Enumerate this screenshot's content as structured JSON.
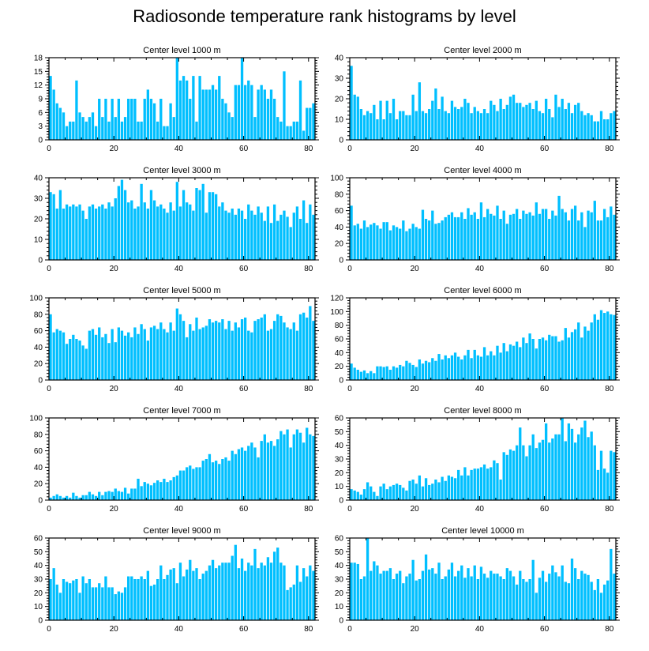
{
  "title": "Radiosonde temperature rank histograms by level",
  "bar_color": "#00bfff",
  "chart_data": [
    {
      "type": "bar",
      "title": "Center level 1000 m",
      "xlim": [
        0,
        82
      ],
      "ylim": [
        0,
        18
      ],
      "xticks": [
        0,
        20,
        40,
        60,
        80
      ],
      "yticks": [
        0,
        3,
        6,
        9,
        12,
        15,
        18
      ],
      "values": [
        14,
        11,
        8,
        7,
        6,
        3,
        4,
        4,
        13,
        6,
        5,
        4,
        5,
        6,
        3,
        9,
        5,
        9,
        4,
        9,
        5,
        9,
        4,
        5,
        9,
        9,
        9,
        4,
        4,
        9,
        11,
        9,
        8,
        4,
        9,
        3,
        3,
        8,
        5,
        18,
        13,
        14,
        13,
        9,
        14,
        4,
        14,
        11,
        11,
        11,
        12,
        11,
        14,
        9,
        8,
        6,
        5,
        12,
        12,
        18,
        12,
        13,
        12,
        5,
        11,
        12,
        11,
        9,
        11,
        9,
        5,
        4,
        15,
        3,
        3,
        4,
        4,
        13,
        2,
        7,
        7,
        8
      ]
    },
    {
      "type": "bar",
      "title": "Center level 2000 m",
      "xlim": [
        0,
        82
      ],
      "ylim": [
        0,
        40
      ],
      "xticks": [
        0,
        20,
        40,
        60,
        80
      ],
      "yticks": [
        0,
        10,
        20,
        30,
        40
      ],
      "values": [
        36,
        22,
        21,
        15,
        12,
        14,
        13,
        17,
        10,
        19,
        10,
        19,
        13,
        20,
        10,
        14,
        14,
        12,
        12,
        22,
        14,
        28,
        14,
        13,
        15,
        19,
        25,
        15,
        21,
        14,
        13,
        19,
        16,
        15,
        16,
        20,
        18,
        13,
        16,
        14,
        13,
        15,
        13,
        19,
        17,
        14,
        20,
        15,
        17,
        21,
        22,
        18,
        18,
        16,
        17,
        18,
        15,
        19,
        14,
        13,
        20,
        15,
        11,
        22,
        16,
        20,
        15,
        18,
        13,
        17,
        18,
        14,
        12,
        13,
        12,
        9,
        9,
        14,
        10,
        10,
        13,
        14
      ]
    },
    {
      "type": "bar",
      "title": "Center level 3000 m",
      "xlim": [
        0,
        82
      ],
      "ylim": [
        0,
        40
      ],
      "xticks": [
        0,
        20,
        40,
        60,
        80
      ],
      "yticks": [
        0,
        10,
        20,
        30,
        40
      ],
      "values": [
        33,
        32,
        25,
        34,
        25,
        27,
        26,
        27,
        26,
        27,
        24,
        20,
        26,
        27,
        25,
        26,
        27,
        25,
        28,
        26,
        30,
        36,
        39,
        34,
        28,
        29,
        25,
        26,
        37,
        28,
        25,
        34,
        29,
        26,
        27,
        25,
        23,
        28,
        24,
        38,
        26,
        34,
        28,
        27,
        24,
        35,
        34,
        37,
        23,
        33,
        33,
        32,
        26,
        28,
        24,
        23,
        25,
        22,
        25,
        24,
        20,
        27,
        24,
        22,
        26,
        23,
        19,
        26,
        18,
        27,
        19,
        22,
        24,
        21,
        16,
        23,
        26,
        20,
        29,
        18,
        27,
        22
      ]
    },
    {
      "type": "bar",
      "title": "Center level 4000 m",
      "xlim": [
        0,
        82
      ],
      "ylim": [
        0,
        100
      ],
      "xticks": [
        0,
        20,
        40,
        60,
        80
      ],
      "yticks": [
        0,
        20,
        40,
        60,
        80,
        100
      ],
      "values": [
        66,
        42,
        44,
        38,
        48,
        40,
        43,
        45,
        42,
        38,
        46,
        46,
        36,
        42,
        40,
        38,
        48,
        35,
        38,
        44,
        40,
        38,
        61,
        50,
        48,
        60,
        44,
        45,
        48,
        52,
        55,
        58,
        52,
        52,
        58,
        50,
        63,
        55,
        58,
        50,
        70,
        52,
        62,
        56,
        54,
        66,
        50,
        60,
        44,
        55,
        56,
        62,
        50,
        60,
        56,
        58,
        54,
        70,
        56,
        62,
        62,
        50,
        60,
        54,
        78,
        62,
        58,
        48,
        62,
        66,
        48,
        58,
        40,
        60,
        58,
        72,
        48,
        48,
        62,
        52,
        65,
        55
      ]
    },
    {
      "type": "bar",
      "title": "Center level 5000 m",
      "xlim": [
        0,
        82
      ],
      "ylim": [
        0,
        100
      ],
      "xticks": [
        0,
        20,
        40,
        60,
        80
      ],
      "yticks": [
        0,
        20,
        40,
        60,
        80,
        100
      ],
      "values": [
        80,
        58,
        62,
        60,
        58,
        44,
        50,
        55,
        50,
        48,
        42,
        38,
        60,
        62,
        55,
        64,
        52,
        56,
        45,
        62,
        46,
        64,
        60,
        54,
        58,
        52,
        64,
        56,
        68,
        62,
        48,
        64,
        66,
        62,
        70,
        62,
        58,
        70,
        60,
        87,
        80,
        72,
        52,
        68,
        60,
        76,
        62,
        64,
        66,
        74,
        70,
        72,
        70,
        74,
        62,
        72,
        60,
        70,
        64,
        74,
        76,
        60,
        58,
        72,
        74,
        76,
        80,
        60,
        62,
        72,
        80,
        78,
        70,
        64,
        62,
        70,
        60,
        80,
        82,
        76,
        90,
        72
      ]
    },
    {
      "type": "bar",
      "title": "Center level 6000 m",
      "xlim": [
        0,
        82
      ],
      "ylim": [
        0,
        120
      ],
      "xticks": [
        0,
        20,
        40,
        60,
        80
      ],
      "yticks": [
        0,
        20,
        40,
        60,
        80,
        100,
        120
      ],
      "values": [
        24,
        18,
        15,
        12,
        14,
        10,
        13,
        10,
        20,
        20,
        19,
        20,
        15,
        20,
        18,
        22,
        20,
        28,
        25,
        22,
        19,
        30,
        24,
        28,
        26,
        32,
        28,
        38,
        30,
        36,
        32,
        36,
        40,
        34,
        30,
        36,
        44,
        32,
        44,
        36,
        34,
        48,
        36,
        42,
        36,
        50,
        40,
        54,
        42,
        52,
        50,
        56,
        48,
        62,
        54,
        68,
        60,
        46,
        60,
        62,
        58,
        66,
        64,
        64,
        56,
        58,
        76,
        62,
        70,
        74,
        84,
        62,
        78,
        72,
        84,
        96,
        88,
        102,
        98,
        100,
        96,
        95
      ]
    },
    {
      "type": "bar",
      "title": "Center level 7000 m",
      "xlim": [
        0,
        82
      ],
      "ylim": [
        0,
        100
      ],
      "xticks": [
        0,
        20,
        40,
        60,
        80
      ],
      "yticks": [
        0,
        20,
        40,
        60,
        80,
        100
      ],
      "values": [
        3,
        5,
        7,
        5,
        3,
        5,
        3,
        9,
        5,
        3,
        6,
        6,
        10,
        7,
        5,
        10,
        6,
        10,
        11,
        10,
        14,
        11,
        10,
        15,
        8,
        14,
        14,
        26,
        17,
        22,
        20,
        18,
        21,
        24,
        22,
        26,
        22,
        24,
        28,
        30,
        36,
        36,
        40,
        42,
        38,
        40,
        40,
        48,
        50,
        56,
        46,
        48,
        44,
        50,
        52,
        48,
        60,
        56,
        62,
        64,
        60,
        66,
        70,
        64,
        52,
        72,
        80,
        70,
        72,
        66,
        74,
        84,
        80,
        86,
        64,
        80,
        86,
        82,
        70,
        88,
        80,
        78
      ]
    },
    {
      "type": "bar",
      "title": "Center level 8000 m",
      "xlim": [
        0,
        82
      ],
      "ylim": [
        0,
        60
      ],
      "xticks": [
        0,
        20,
        40,
        60,
        80
      ],
      "yticks": [
        0,
        10,
        20,
        30,
        40,
        50,
        60
      ],
      "values": [
        8,
        7,
        6,
        4,
        8,
        13,
        10,
        6,
        3,
        10,
        12,
        8,
        10,
        11,
        12,
        11,
        9,
        7,
        14,
        15,
        12,
        18,
        10,
        16,
        11,
        12,
        15,
        13,
        17,
        14,
        18,
        17,
        16,
        22,
        18,
        24,
        18,
        22,
        23,
        23,
        24,
        26,
        23,
        24,
        29,
        27,
        15,
        35,
        33,
        37,
        36,
        40,
        53,
        40,
        32,
        40,
        48,
        38,
        42,
        44,
        56,
        42,
        45,
        48,
        48,
        60,
        43,
        56,
        52,
        42,
        48,
        53,
        58,
        46,
        50,
        40,
        22,
        36,
        23,
        20,
        36,
        35
      ]
    },
    {
      "type": "bar",
      "title": "Center level 9000 m",
      "xlim": [
        0,
        82
      ],
      "ylim": [
        0,
        60
      ],
      "xticks": [
        0,
        20,
        40,
        60,
        80
      ],
      "yticks": [
        0,
        10,
        20,
        30,
        40,
        50,
        60
      ],
      "values": [
        30,
        38,
        26,
        20,
        30,
        28,
        27,
        29,
        30,
        20,
        32,
        27,
        30,
        24,
        24,
        27,
        24,
        32,
        24,
        24,
        19,
        21,
        20,
        24,
        32,
        32,
        30,
        30,
        32,
        30,
        36,
        25,
        26,
        30,
        40,
        30,
        33,
        37,
        38,
        27,
        42,
        32,
        37,
        44,
        36,
        38,
        30,
        34,
        36,
        40,
        44,
        38,
        40,
        42,
        42,
        42,
        47,
        55,
        38,
        45,
        36,
        42,
        40,
        52,
        38,
        42,
        40,
        46,
        42,
        50,
        53,
        42,
        40,
        22,
        24,
        26,
        40,
        28,
        38,
        32,
        40,
        36
      ]
    },
    {
      "type": "bar",
      "title": "Center level 10000 m",
      "xlim": [
        0,
        82
      ],
      "ylim": [
        0,
        60
      ],
      "xticks": [
        0,
        20,
        40,
        60,
        80
      ],
      "yticks": [
        0,
        10,
        20,
        30,
        40,
        50,
        60
      ],
      "values": [
        42,
        42,
        41,
        30,
        32,
        60,
        36,
        43,
        40,
        34,
        36,
        36,
        38,
        30,
        34,
        36,
        27,
        32,
        34,
        44,
        29,
        30,
        36,
        48,
        37,
        38,
        34,
        42,
        30,
        32,
        37,
        42,
        32,
        36,
        40,
        31,
        38,
        32,
        40,
        30,
        39,
        34,
        31,
        36,
        34,
        34,
        32,
        30,
        38,
        36,
        32,
        26,
        36,
        30,
        28,
        30,
        44,
        20,
        31,
        36,
        28,
        34,
        40,
        35,
        32,
        40,
        28,
        27,
        45,
        38,
        30,
        36,
        34,
        33,
        28,
        22,
        30,
        20,
        26,
        29,
        52,
        34
      ]
    }
  ]
}
